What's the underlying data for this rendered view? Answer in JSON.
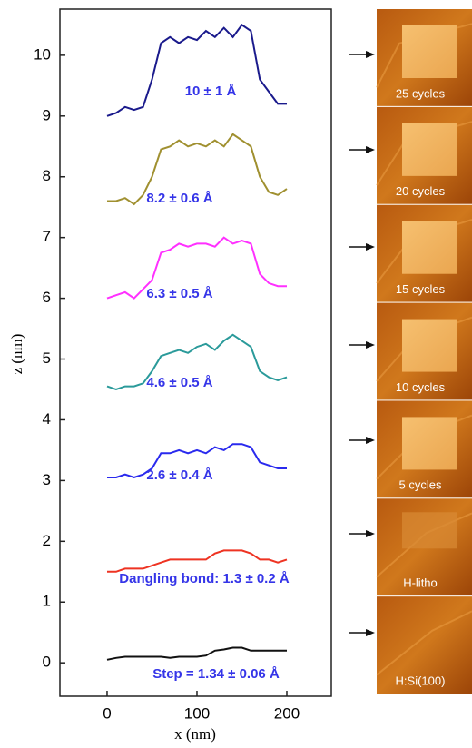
{
  "chart_data": {
    "type": "line",
    "x_label": "x (nm)",
    "y_label": "z (nm)",
    "xlim": [
      -52.5,
      249.5
    ],
    "ylim": [
      -0.55,
      10.76
    ],
    "xticks": [
      0,
      100,
      200
    ],
    "yticks": [
      0,
      1,
      2,
      3,
      4,
      5,
      6,
      7,
      8,
      9,
      10
    ],
    "x": [
      0,
      10,
      20,
      30,
      40,
      50,
      60,
      70,
      80,
      90,
      100,
      110,
      120,
      130,
      140,
      150,
      160,
      170,
      180,
      190,
      200
    ],
    "series": [
      {
        "color": "#1a1a8c",
        "values": [
          9.0,
          9.05,
          9.15,
          9.1,
          9.15,
          9.6,
          10.2,
          10.3,
          10.2,
          10.3,
          10.25,
          10.4,
          10.3,
          10.45,
          10.3,
          10.5,
          10.4,
          9.6,
          9.4,
          9.2,
          9.2
        ]
      },
      {
        "color": "#a09030",
        "values": [
          7.6,
          7.6,
          7.65,
          7.55,
          7.7,
          8.0,
          8.45,
          8.5,
          8.6,
          8.5,
          8.55,
          8.5,
          8.6,
          8.5,
          8.7,
          8.6,
          8.5,
          8.0,
          7.75,
          7.7,
          7.8
        ]
      },
      {
        "color": "#ff30ff",
        "values": [
          6.0,
          6.05,
          6.1,
          6.0,
          6.15,
          6.3,
          6.75,
          6.8,
          6.9,
          6.85,
          6.9,
          6.9,
          6.85,
          7.0,
          6.9,
          6.95,
          6.9,
          6.4,
          6.25,
          6.2,
          6.2
        ]
      },
      {
        "color": "#2a9a9a",
        "values": [
          4.55,
          4.5,
          4.55,
          4.55,
          4.6,
          4.8,
          5.05,
          5.1,
          5.15,
          5.1,
          5.2,
          5.25,
          5.15,
          5.3,
          5.4,
          5.3,
          5.2,
          4.8,
          4.7,
          4.65,
          4.7
        ]
      },
      {
        "color": "#2a2aee",
        "values": [
          3.05,
          3.05,
          3.1,
          3.05,
          3.1,
          3.2,
          3.45,
          3.45,
          3.5,
          3.45,
          3.5,
          3.45,
          3.55,
          3.5,
          3.6,
          3.6,
          3.55,
          3.3,
          3.25,
          3.2,
          3.2
        ]
      },
      {
        "color": "#ee3322",
        "values": [
          1.5,
          1.5,
          1.55,
          1.55,
          1.55,
          1.6,
          1.65,
          1.7,
          1.7,
          1.7,
          1.7,
          1.7,
          1.8,
          1.85,
          1.85,
          1.85,
          1.8,
          1.7,
          1.7,
          1.65,
          1.7
        ]
      },
      {
        "color": "#111111",
        "values": [
          0.05,
          0.08,
          0.1,
          0.1,
          0.1,
          0.1,
          0.1,
          0.08,
          0.1,
          0.1,
          0.1,
          0.12,
          0.2,
          0.22,
          0.25,
          0.25,
          0.2,
          0.2,
          0.2,
          0.2,
          0.2
        ]
      }
    ],
    "annotations": [
      "10 ± 1 Å",
      "8.2 ± 0.6 Å",
      "6.3 ± 0.5 Å",
      "4.6 ± 0.5 Å",
      "2.6 ± 0.4 Å",
      "Dangling bond: 1.3 ± 0.2 Å",
      "Step = 1.34 ± 0.06 Å"
    ]
  },
  "images": {
    "labels": [
      "25 cycles",
      "20 cycles",
      "15 cycles",
      "10 cycles",
      "5 cycles",
      "H-litho",
      "H:Si(100)"
    ]
  }
}
